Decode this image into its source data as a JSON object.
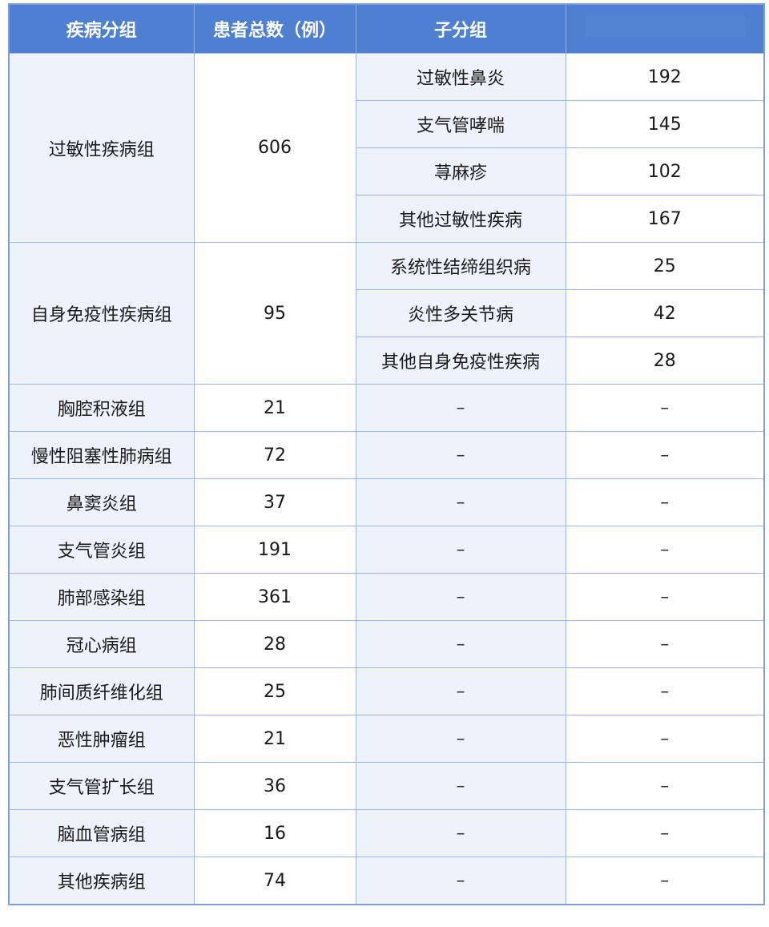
{
  "table": {
    "headers": [
      "疾病分组",
      "患者总数（例）",
      "子分组",
      ""
    ],
    "rows": [
      {
        "group": "过敏性疾病组",
        "total": "606",
        "subgroups": [
          {
            "name": "过敏性鼻炎",
            "count": "192"
          },
          {
            "name": "支气管哮喘",
            "count": "145"
          },
          {
            "name": "荨麻疹",
            "count": "102"
          },
          {
            "name": "其他过敏性疾病",
            "count": "167"
          }
        ]
      },
      {
        "group": "自身免疫性疾病组",
        "total": "95",
        "subgroups": [
          {
            "name": "系统性结缔组织病",
            "count": "25"
          },
          {
            "name": "炎性多关节病",
            "count": "42"
          },
          {
            "name": "其他自身免疫性疾病",
            "count": "28"
          }
        ]
      },
      {
        "group": "胸腔积液组",
        "total": "21",
        "subgroups": [
          {
            "name": "–",
            "count": "–"
          }
        ]
      },
      {
        "group": "慢性阻塞性肺病组",
        "total": "72",
        "subgroups": [
          {
            "name": "–",
            "count": "–"
          }
        ]
      },
      {
        "group": "鼻窦炎组",
        "total": "37",
        "subgroups": [
          {
            "name": "–",
            "count": "–"
          }
        ]
      },
      {
        "group": "支气管炎组",
        "total": "191",
        "subgroups": [
          {
            "name": "–",
            "count": "–"
          }
        ]
      },
      {
        "group": "肺部感染组",
        "total": "361",
        "subgroups": [
          {
            "name": "–",
            "count": "–"
          }
        ]
      },
      {
        "group": "冠心病组",
        "total": "28",
        "subgroups": [
          {
            "name": "–",
            "count": "–"
          }
        ]
      },
      {
        "group": "肺间质纤维化组",
        "total": "25",
        "subgroups": [
          {
            "name": "–",
            "count": "–"
          }
        ]
      },
      {
        "group": "恶性肿瘤组",
        "total": "21",
        "subgroups": [
          {
            "name": "–",
            "count": "–"
          }
        ]
      },
      {
        "group": "支气管扩长组",
        "total": "36",
        "subgroups": [
          {
            "name": "–",
            "count": "–"
          }
        ]
      },
      {
        "group": "脑血管病组",
        "total": "16",
        "subgroups": [
          {
            "name": "–",
            "count": "–"
          }
        ]
      },
      {
        "group": "其他疾病组",
        "total": "74",
        "subgroups": [
          {
            "name": "–",
            "count": "–"
          }
        ]
      }
    ]
  }
}
